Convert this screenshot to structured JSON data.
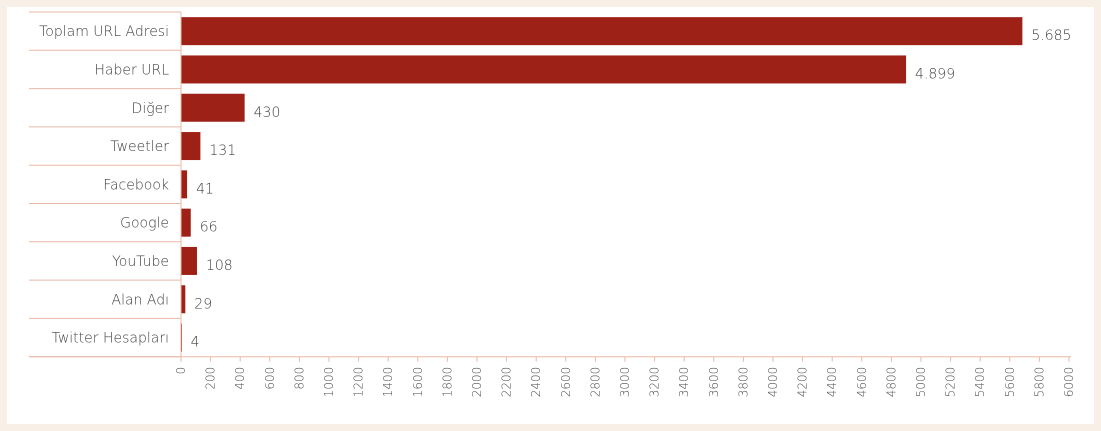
{
  "chart_data": {
    "type": "bar",
    "orientation": "horizontal",
    "categories": [
      "Toplam URL Adresi",
      "Haber URL",
      "Diğer",
      "Tweetler",
      "Facebook",
      "Google",
      "YouTube",
      "Alan Adı",
      "Twitter Hesapları"
    ],
    "values": [
      5685,
      4899,
      430,
      131,
      41,
      66,
      108,
      29,
      4
    ],
    "value_labels": [
      "5.685",
      "4.899",
      "430",
      "131",
      "41",
      "66",
      "108",
      "29",
      "4"
    ],
    "xlim": [
      0,
      6000
    ],
    "x_ticks": [
      "0",
      "200",
      "400",
      "600",
      "800",
      "1000",
      "1200",
      "1400",
      "1600",
      "1800",
      "2000",
      "2200",
      "2400",
      "2600",
      "2800",
      "3000",
      "3200",
      "3400",
      "3600",
      "3800",
      "4000",
      "4200",
      "4400",
      "4600",
      "4800",
      "5000",
      "5200",
      "5400",
      "5600",
      "5800",
      "6000"
    ],
    "title": "",
    "xlabel": "",
    "ylabel": "",
    "grid": false,
    "legend": "none"
  },
  "colors": {
    "bar": "#9e2118",
    "axis": "#e8b9a6",
    "background": "#f8efe7"
  }
}
